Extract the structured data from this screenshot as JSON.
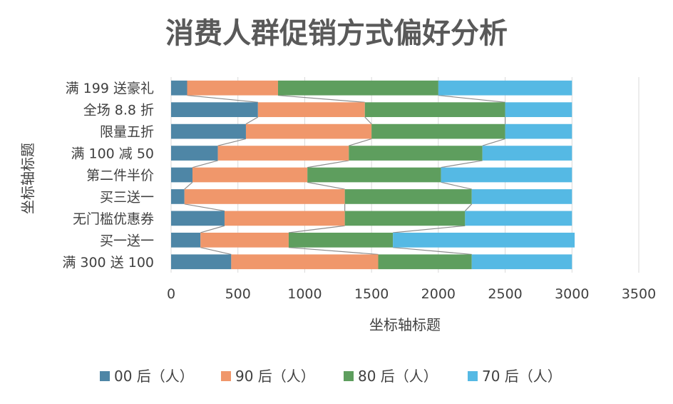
{
  "chart_data": {
    "type": "bar",
    "orientation": "horizontal",
    "stacked": true,
    "title": "消费人群促销方式偏好分析",
    "xlabel": "坐标轴标题",
    "ylabel": "坐标轴标题",
    "xlim": [
      0,
      3500
    ],
    "xticks": [
      "0",
      "500",
      "1000",
      "1500",
      "2000",
      "2500",
      "3000",
      "3500"
    ],
    "categories": [
      "满 199 送豪礼",
      "全场 8.8 折",
      "限量五折",
      "满 100 减 50",
      "第二件半价",
      "买三送一",
      "无门槛优惠券",
      "买一送一",
      "满 300 送 100"
    ],
    "series": [
      {
        "name": "00 后（人）",
        "color": "#4e86a6",
        "values": [
          120,
          650,
          560,
          350,
          160,
          100,
          400,
          220,
          450
        ]
      },
      {
        "name": "90 后（人）",
        "color": "#f0976b",
        "values": [
          680,
          800,
          940,
          980,
          860,
          1200,
          900,
          660,
          1100
        ]
      },
      {
        "name": "80 后（人）",
        "color": "#5e9e5e",
        "values": [
          1200,
          1050,
          1000,
          1000,
          1000,
          950,
          900,
          780,
          700
        ]
      },
      {
        "name": "70 后（人）",
        "color": "#55b9e4",
        "values": [
          1000,
          500,
          500,
          670,
          980,
          750,
          800,
          1360,
          750
        ]
      }
    ],
    "series_lines": true,
    "legend": "bottom"
  }
}
